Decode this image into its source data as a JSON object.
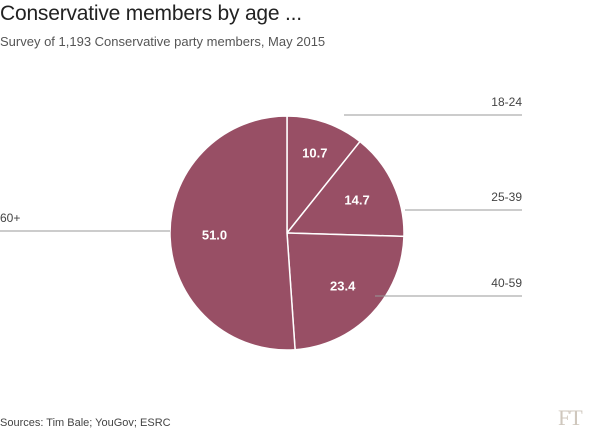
{
  "header": {
    "title": "Conservative members by age ...",
    "subtitle": "Survey of 1,193 Conservative party members, May 2015"
  },
  "footer": {
    "source": "Sources: Tim Bale; YouGov; ESRC",
    "logo": "FT"
  },
  "colors": {
    "slice": "#984f65",
    "slice_edge": "#ffffff",
    "leader": "#999999"
  },
  "chart_data": {
    "type": "pie",
    "title": "Conservative members by age ...",
    "subtitle": "Survey of 1,193 Conservative party members, May 2015",
    "start": "12 o'clock",
    "direction": "clockwise",
    "slices": [
      {
        "label": "18-24",
        "value": 10.7,
        "value_label": "10.7"
      },
      {
        "label": "25-39",
        "value": 14.7,
        "value_label": "14.7"
      },
      {
        "label": "40-59",
        "value": 23.4,
        "value_label": "23.4"
      },
      {
        "label": "60+",
        "value": 51.0,
        "value_label": "51.0"
      }
    ]
  }
}
